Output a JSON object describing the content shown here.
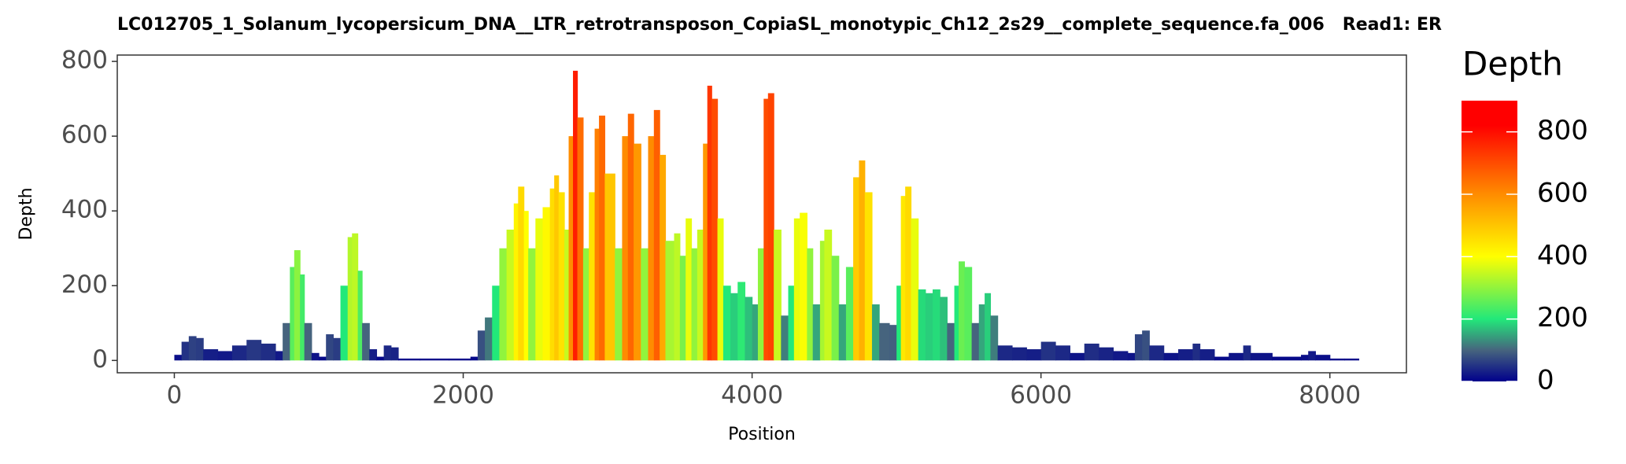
{
  "chart_data": {
    "type": "coverage",
    "title": "LC012705_1_Solanum_lycopersicum_DNA__LTR_retrotransposon_CopiaSL_monotypic_Ch12_2s29__complete_sequence.fa_006   Read1: ER",
    "xlabel": "Position",
    "ylabel": "Depth",
    "legend_title": "Depth",
    "x": [
      0,
      50,
      100,
      150,
      200,
      300,
      400,
      500,
      600,
      700,
      750,
      800,
      830,
      870,
      900,
      950,
      1000,
      1050,
      1100,
      1150,
      1200,
      1230,
      1270,
      1300,
      1350,
      1400,
      1450,
      1500,
      1550,
      1700,
      1900,
      2050,
      2100,
      2150,
      2200,
      2250,
      2300,
      2350,
      2380,
      2420,
      2450,
      2500,
      2550,
      2600,
      2630,
      2660,
      2700,
      2730,
      2760,
      2790,
      2830,
      2870,
      2910,
      2940,
      2980,
      3050,
      3100,
      3140,
      3180,
      3230,
      3280,
      3320,
      3360,
      3400,
      3460,
      3500,
      3540,
      3580,
      3620,
      3660,
      3690,
      3720,
      3760,
      3800,
      3850,
      3900,
      3950,
      4000,
      4040,
      4080,
      4110,
      4150,
      4200,
      4250,
      4290,
      4330,
      4380,
      4420,
      4470,
      4500,
      4550,
      4600,
      4650,
      4700,
      4740,
      4780,
      4830,
      4880,
      4950,
      5000,
      5030,
      5060,
      5100,
      5150,
      5200,
      5250,
      5300,
      5350,
      5400,
      5430,
      5470,
      5520,
      5570,
      5610,
      5650,
      5700,
      5800,
      5900,
      6000,
      6100,
      6200,
      6300,
      6400,
      6500,
      6600,
      6650,
      6700,
      6750,
      6850,
      6950,
      7050,
      7100,
      7200,
      7300,
      7400,
      7450,
      7600,
      7800,
      7850,
      7900,
      8000,
      8100
    ],
    "values": [
      15,
      50,
      65,
      60,
      30,
      25,
      40,
      55,
      45,
      25,
      100,
      250,
      295,
      230,
      100,
      20,
      10,
      70,
      60,
      200,
      330,
      340,
      240,
      100,
      30,
      10,
      40,
      35,
      5,
      5,
      5,
      10,
      80,
      115,
      200,
      300,
      350,
      420,
      465,
      400,
      300,
      380,
      410,
      460,
      495,
      450,
      350,
      600,
      775,
      650,
      300,
      450,
      620,
      655,
      500,
      300,
      600,
      660,
      580,
      300,
      600,
      670,
      550,
      320,
      340,
      280,
      380,
      300,
      350,
      580,
      735,
      700,
      380,
      200,
      180,
      210,
      170,
      150,
      300,
      700,
      715,
      350,
      120,
      200,
      380,
      395,
      300,
      150,
      320,
      350,
      280,
      150,
      250,
      490,
      535,
      450,
      150,
      100,
      95,
      200,
      440,
      465,
      380,
      190,
      180,
      190,
      170,
      100,
      200,
      265,
      250,
      100,
      150,
      180,
      120,
      40,
      35,
      30,
      50,
      40,
      20,
      45,
      35,
      25,
      20,
      70,
      80,
      40,
      20,
      30,
      45,
      30,
      10,
      20,
      40,
      20,
      10,
      15,
      25,
      15,
      5,
      5
    ],
    "xlim": [
      -395,
      8530
    ],
    "ylim": [
      -33,
      817
    ],
    "xticks": [
      0,
      2000,
      4000,
      6000,
      8000
    ],
    "yticks": [
      0,
      200,
      400,
      600,
      800
    ],
    "clim": [
      0,
      900
    ],
    "cticks": [
      0,
      200,
      400,
      600,
      800
    ],
    "color_stops": [
      [
        0,
        "#00008b"
      ],
      [
        100,
        "#46647e"
      ],
      [
        200,
        "#22e87a"
      ],
      [
        400,
        "#ffff00"
      ],
      [
        600,
        "#ff8c00"
      ],
      [
        820,
        "#ff0000"
      ]
    ]
  }
}
